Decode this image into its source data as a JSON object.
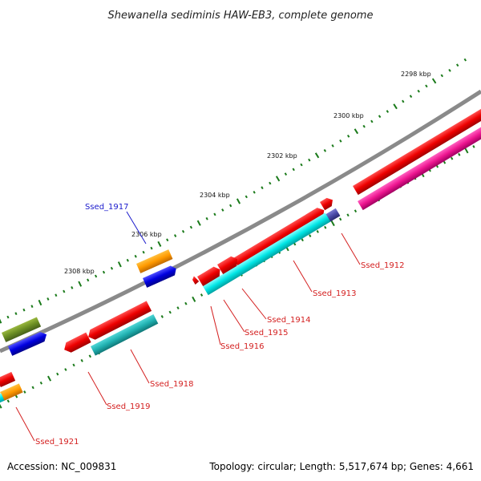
{
  "title": "Shewanella sediminis HAW-EB3, complete genome",
  "footer": {
    "accession": "Accession: NC_009831",
    "topology": "Topology: circular; Length: 5,517,674 bp; Genes: 4,661"
  },
  "ticks": [
    "2298 kbp",
    "2300 kbp",
    "2302 kbp",
    "2304 kbp",
    "2306 kbp",
    "2308 kbp"
  ],
  "colors": {
    "backbone": "#808080",
    "label_red": "#d42020",
    "label_blue": "#1a1acc",
    "tick_green": "#1a7a1a"
  },
  "genes": [
    {
      "name": "Ssed_1912",
      "color": "#d42020"
    },
    {
      "name": "Ssed_1913",
      "color": "#d42020"
    },
    {
      "name": "Ssed_1914",
      "color": "#d42020"
    },
    {
      "name": "Ssed_1915",
      "color": "#d42020"
    },
    {
      "name": "Ssed_1916",
      "color": "#d42020"
    },
    {
      "name": "Ssed_1917",
      "color": "#1a1acc"
    },
    {
      "name": "Ssed_1918",
      "color": "#d42020"
    },
    {
      "name": "Ssed_1919",
      "color": "#d42020"
    },
    {
      "name": "Ssed_1921",
      "color": "#d42020"
    }
  ]
}
